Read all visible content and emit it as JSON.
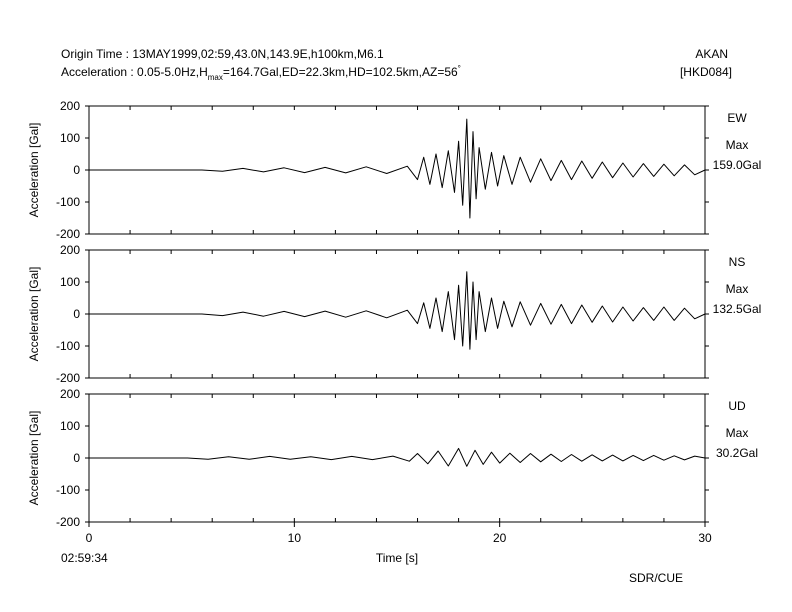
{
  "header": {
    "origin_line": "Origin Time : 13MAY1999,02:59,43.0N,143.9E,h100km,M6.1",
    "accel_prefix": "Acceleration : 0.05-5.0Hz,H",
    "accel_sub": "max",
    "accel_suffix": "=164.7Gal,ED=22.3km,HD=102.5km,AZ=56",
    "accel_degree": "°",
    "station_name": "AKAN",
    "station_code": "[HKD084]"
  },
  "footer": {
    "start_time": "02:59:34",
    "credit": "SDR/CUE"
  },
  "colors": {
    "trace": "#000000",
    "axis": "#000000",
    "background": "#ffffff"
  },
  "chart_data": [
    {
      "type": "line",
      "component": "EW",
      "max_label": "Max",
      "max_value": "159.0Gal",
      "ylabel": "Acceleration [Gal]",
      "ylim": [
        -200,
        200
      ],
      "yticks": [
        "200",
        "100",
        "0",
        "-100",
        "-200"
      ],
      "xlim": [
        0,
        30
      ],
      "grid": false,
      "series": [
        {
          "x": [
            0,
            5.5,
            6.5,
            7.5,
            8.5,
            9.5,
            10.5,
            11.5,
            12.5,
            13.5,
            14.5,
            15.5,
            16.0,
            16.3,
            16.6,
            16.9,
            17.2,
            17.5,
            17.8,
            18.0,
            18.2,
            18.4,
            18.55,
            18.7,
            18.85,
            19.0,
            19.3,
            19.6,
            19.9,
            20.2,
            20.6,
            21.0,
            21.5,
            22,
            22.5,
            23,
            23.5,
            24,
            24.5,
            25,
            25.5,
            26,
            26.5,
            27,
            27.5,
            28,
            28.5,
            29,
            29.5,
            30
          ],
          "y": [
            0,
            0,
            -4,
            5,
            -6,
            7,
            -8,
            8,
            -9,
            10,
            -11,
            12,
            -30,
            40,
            -45,
            50,
            -55,
            60,
            -70,
            90,
            -110,
            159,
            -150,
            120,
            -90,
            70,
            -60,
            55,
            -50,
            45,
            -45,
            40,
            -38,
            35,
            -33,
            30,
            -30,
            28,
            -26,
            25,
            -24,
            22,
            -22,
            20,
            -20,
            18,
            -18,
            16,
            -15,
            0
          ]
        }
      ]
    },
    {
      "type": "line",
      "component": "NS",
      "max_label": "Max",
      "max_value": "132.5Gal",
      "ylabel": "Acceleration [Gal]",
      "ylim": [
        -200,
        200
      ],
      "yticks": [
        "200",
        "100",
        "0",
        "-100",
        "-200"
      ],
      "xlim": [
        0,
        30
      ],
      "grid": false,
      "series": [
        {
          "x": [
            0,
            5.5,
            6.5,
            7.5,
            8.5,
            9.5,
            10.5,
            11.5,
            12.5,
            13.5,
            14.5,
            15.5,
            16.0,
            16.3,
            16.6,
            16.9,
            17.2,
            17.5,
            17.8,
            18.0,
            18.2,
            18.4,
            18.55,
            18.7,
            18.85,
            19.0,
            19.3,
            19.6,
            19.9,
            20.2,
            20.6,
            21.0,
            21.5,
            22,
            22.5,
            23,
            23.5,
            24,
            24.5,
            25,
            25.5,
            26,
            26.5,
            27,
            27.5,
            28,
            28.5,
            29,
            29.5,
            30
          ],
          "y": [
            0,
            0,
            -5,
            6,
            -7,
            8,
            -8,
            9,
            -10,
            10,
            -12,
            12,
            -30,
            35,
            -45,
            50,
            -55,
            70,
            -80,
            90,
            -100,
            132,
            -110,
            100,
            -80,
            70,
            -55,
            50,
            -45,
            40,
            -40,
            38,
            -35,
            33,
            -32,
            30,
            -30,
            28,
            -26,
            25,
            -25,
            22,
            -22,
            20,
            -20,
            22,
            -20,
            18,
            -15,
            0
          ]
        }
      ]
    },
    {
      "type": "line",
      "component": "UD",
      "max_label": "Max",
      "max_value": "30.2Gal",
      "ylabel": "Acceleration [Gal]",
      "xlabel": "Time [s]",
      "ylim": [
        -200,
        200
      ],
      "yticks": [
        "200",
        "100",
        "0",
        "-100",
        "-200"
      ],
      "xlim": [
        0,
        30
      ],
      "xticks": [
        "0",
        "10",
        "20",
        "30"
      ],
      "grid": false,
      "series": [
        {
          "x": [
            0,
            4.8,
            5.8,
            6.8,
            7.8,
            8.8,
            9.8,
            10.8,
            11.8,
            12.8,
            13.8,
            14.8,
            15.6,
            16.0,
            16.5,
            17.0,
            17.5,
            18.0,
            18.4,
            18.8,
            19.2,
            19.6,
            20.0,
            20.5,
            21,
            21.5,
            22,
            22.5,
            23,
            23.5,
            24,
            24.5,
            25,
            25.5,
            26,
            26.5,
            27,
            27.5,
            28,
            28.5,
            29,
            29.5,
            30
          ],
          "y": [
            0,
            0,
            -4,
            4,
            -4,
            5,
            -4,
            4,
            -5,
            5,
            -5,
            6,
            -10,
            14,
            -18,
            22,
            -25,
            30,
            -26,
            24,
            -20,
            18,
            -16,
            15,
            -14,
            14,
            -12,
            12,
            -11,
            11,
            -10,
            10,
            -9,
            9,
            -9,
            8,
            -8,
            8,
            -7,
            7,
            -6,
            6,
            0
          ]
        }
      ]
    }
  ]
}
